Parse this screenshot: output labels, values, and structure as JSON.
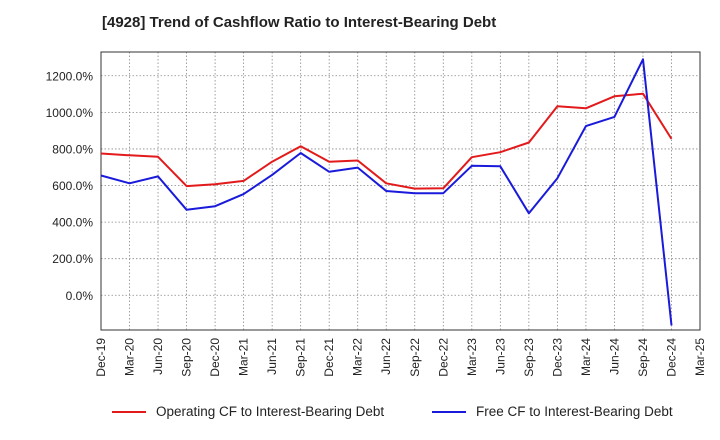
{
  "chart_data": {
    "type": "line",
    "title": "[4928]  Trend of Cashflow Ratio to Interest-Bearing Debt",
    "xlabel": "",
    "ylabel": "",
    "categories": [
      "Dec-19",
      "Mar-20",
      "Jun-20",
      "Sep-20",
      "Dec-20",
      "Mar-21",
      "Jun-21",
      "Sep-21",
      "Dec-21",
      "Mar-22",
      "Jun-22",
      "Sep-22",
      "Dec-22",
      "Mar-23",
      "Jun-23",
      "Sep-23",
      "Dec-23",
      "Mar-24",
      "Jun-24",
      "Sep-24",
      "Dec-24",
      "Mar-25"
    ],
    "y_ticks": [
      0,
      200,
      400,
      600,
      800,
      1000,
      1200
    ],
    "y_tick_labels": [
      "0.0%",
      "200.0%",
      "400.0%",
      "600.0%",
      "800.0%",
      "1000.0%",
      "1200.0%"
    ],
    "ylim": [
      -190,
      1330
    ],
    "grid": true,
    "legend_position": "bottom",
    "series": [
      {
        "name": "Operating CF to Interest-Bearing Debt",
        "color": "#e31a1c",
        "values": [
          775,
          765,
          757,
          597,
          607,
          625,
          730,
          815,
          730,
          737,
          612,
          583,
          585,
          755,
          782,
          835,
          1033,
          1022,
          1088,
          1102,
          855,
          null
        ]
      },
      {
        "name": "Free CF to Interest-Bearing Debt",
        "color": "#1a1adb",
        "values": [
          655,
          612,
          650,
          467,
          487,
          553,
          658,
          778,
          675,
          698,
          570,
          558,
          558,
          708,
          705,
          448,
          640,
          925,
          975,
          1290,
          -165,
          null
        ]
      }
    ]
  }
}
